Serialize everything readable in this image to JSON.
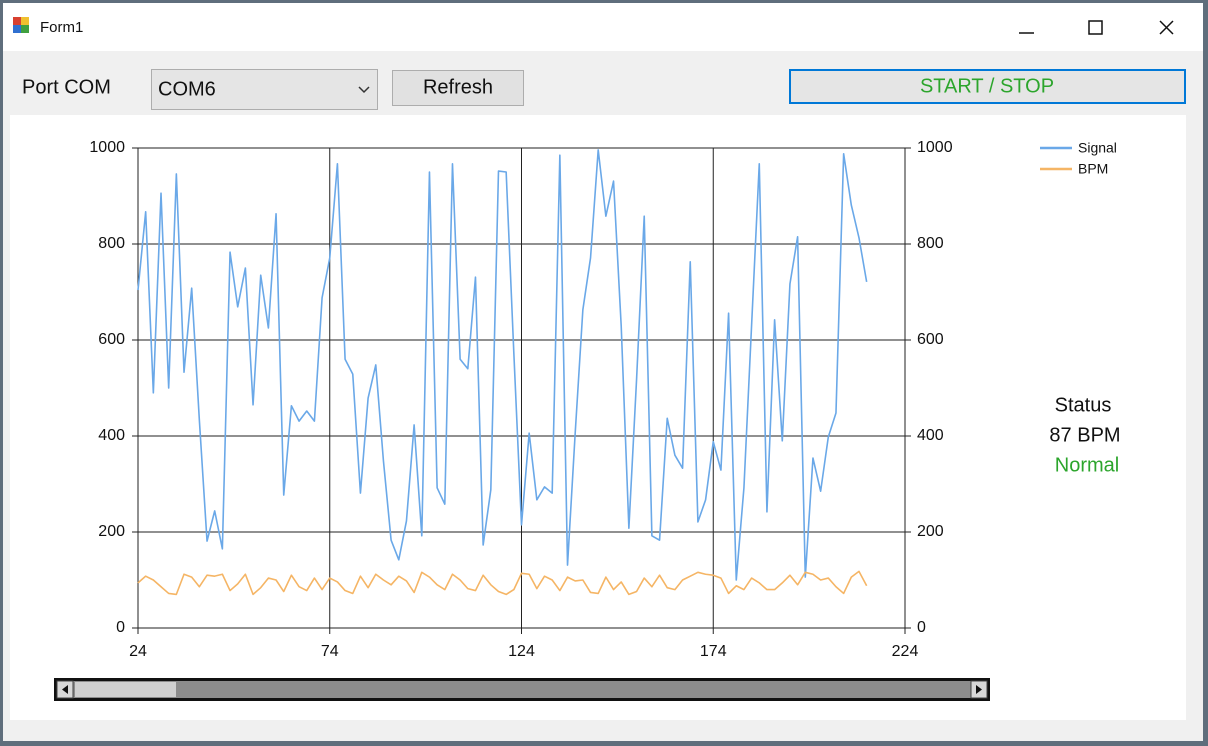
{
  "window": {
    "title": "Form1"
  },
  "toolbar": {
    "port_label": "Port COM",
    "port_value": "COM6",
    "refresh": "Refresh",
    "start_stop": "START / STOP"
  },
  "status": {
    "label": "Status",
    "bpm": "87 BPM",
    "state": "Normal"
  },
  "chart_data": {
    "type": "line",
    "x": [
      24,
      26,
      28,
      30,
      32,
      34,
      36,
      38,
      40,
      42,
      44,
      46,
      48,
      50,
      52,
      54,
      56,
      58,
      60,
      62,
      64,
      66,
      68,
      70,
      72,
      74,
      76,
      78,
      80,
      82,
      84,
      86,
      88,
      90,
      92,
      94,
      96,
      98,
      100,
      102,
      104,
      106,
      108,
      110,
      112,
      114,
      116,
      118,
      120,
      122,
      124,
      126,
      128,
      130,
      132,
      134,
      136,
      138,
      140,
      142,
      144,
      146,
      148,
      150,
      152,
      154,
      156,
      158,
      160,
      162,
      164,
      166,
      168,
      170,
      172,
      174,
      176,
      178,
      180,
      182,
      184,
      186,
      188,
      190,
      192,
      194,
      196,
      198,
      200,
      202,
      204,
      206,
      208,
      210,
      212,
      214
    ],
    "series": [
      {
        "name": "Signal",
        "color": "#6aa8e8",
        "values": [
          704,
          867,
          490,
          906,
          500,
          946,
          533,
          708,
          433,
          181,
          244,
          165,
          783,
          669,
          750,
          465,
          735,
          625,
          863,
          277,
          463,
          431,
          452,
          431,
          688,
          771,
          967,
          560,
          529,
          281,
          479,
          548,
          348,
          183,
          142,
          223,
          423,
          192,
          950,
          292,
          258,
          967,
          560,
          540,
          731,
          173,
          288,
          952,
          950,
          573,
          215,
          406,
          267,
          294,
          281,
          985,
          131,
          406,
          663,
          771,
          996,
          858,
          931,
          629,
          208,
          517,
          858,
          192,
          183,
          437,
          360,
          333,
          763,
          221,
          267,
          388,
          329,
          656,
          100,
          292,
          631,
          967,
          242,
          642,
          390,
          717,
          815,
          106,
          354,
          285,
          398,
          448,
          988,
          881,
          813,
          721
        ]
      },
      {
        "name": "BPM",
        "color": "#f5b565",
        "values": [
          94,
          108,
          100,
          86,
          72,
          70,
          112,
          106,
          86,
          110,
          108,
          112,
          78,
          92,
          112,
          70,
          84,
          104,
          100,
          76,
          110,
          86,
          78,
          104,
          80,
          104,
          96,
          78,
          72,
          108,
          84,
          112,
          100,
          90,
          108,
          98,
          74,
          116,
          106,
          90,
          80,
          112,
          100,
          82,
          78,
          110,
          90,
          76,
          70,
          80,
          114,
          112,
          82,
          108,
          100,
          78,
          106,
          98,
          100,
          74,
          72,
          106,
          80,
          96,
          70,
          76,
          104,
          86,
          110,
          84,
          80,
          100,
          108,
          116,
          112,
          110,
          104,
          72,
          88,
          80,
          104,
          94,
          80,
          80,
          94,
          110,
          90,
          116,
          112,
          100,
          104,
          86,
          72,
          106,
          118,
          88
        ]
      }
    ],
    "xlim": [
      24,
      224
    ],
    "xticks": [
      24,
      74,
      124,
      174,
      224
    ],
    "ylim": [
      0,
      1000
    ],
    "yticks": [
      0,
      200,
      400,
      600,
      800,
      1000
    ],
    "y2lim": [
      0,
      1000
    ],
    "y2ticks": [
      0,
      200,
      400,
      600,
      800,
      1000
    ],
    "grid": true,
    "legend": "right"
  }
}
